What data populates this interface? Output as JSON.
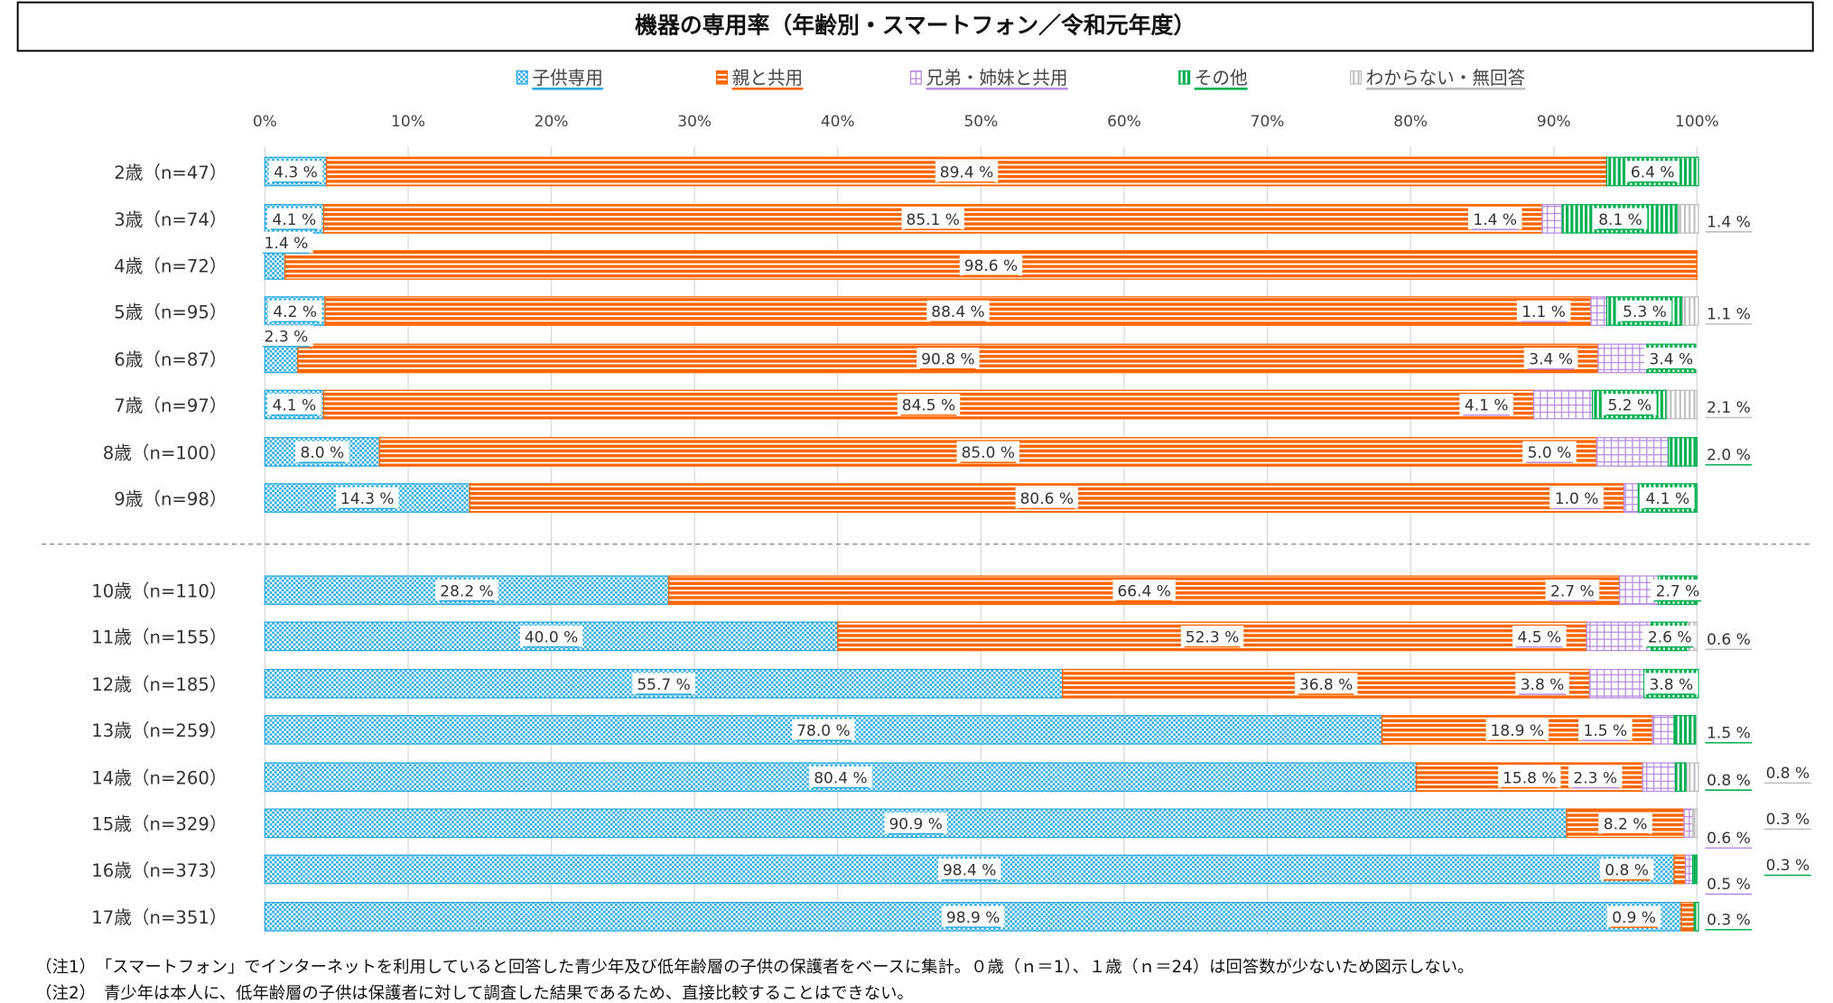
{
  "chart_data": {
    "type": "bar",
    "orientation": "horizontal-stacked-100",
    "title": "機器の専用率（年齢別・スマートフォン／令和元年度）",
    "xlim": [
      0,
      100
    ],
    "x_ticks": [
      "0%",
      "10%",
      "20%",
      "30%",
      "40%",
      "50%",
      "60%",
      "70%",
      "80%",
      "90%",
      "100%"
    ],
    "grid": true,
    "legend_placement": "top",
    "categories": [
      "2歳（n=47）",
      "3歳（n=74）",
      "4歳（n=72）",
      "5歳（n=95）",
      "6歳（n=87）",
      "7歳（n=97）",
      "8歳（n=100）",
      "9歳（n=98）",
      "10歳（n=110）",
      "11歳（n=155）",
      "12歳（n=185）",
      "13歳（n=259）",
      "14歳（n=260）",
      "15歳（n=329）",
      "16歳（n=373）",
      "17歳（n=351）"
    ],
    "group_divider_after": "9歳（n=98）",
    "series": [
      {
        "name": "子供専用",
        "color": "#29ABE2",
        "pattern": "checker",
        "values": [
          4.3,
          4.1,
          1.4,
          4.2,
          2.3,
          4.1,
          8.0,
          14.3,
          28.2,
          40.0,
          55.7,
          78.0,
          80.4,
          90.9,
          98.4,
          98.9
        ]
      },
      {
        "name": "親と共用",
        "color": "#FF6600",
        "pattern": "horizontal-stripes",
        "values": [
          89.4,
          85.1,
          98.6,
          88.4,
          90.8,
          84.5,
          85.0,
          80.6,
          66.4,
          52.3,
          36.8,
          18.9,
          15.8,
          8.2,
          0.8,
          0.9
        ]
      },
      {
        "name": "兄弟・姉妹と共用",
        "color": "#B98EE0",
        "pattern": "grid",
        "values": [
          0,
          1.4,
          0,
          1.1,
          3.4,
          4.1,
          5.0,
          1.0,
          2.7,
          4.5,
          3.8,
          1.5,
          2.3,
          0.6,
          0.5,
          0
        ]
      },
      {
        "name": "その他",
        "color": "#00B050",
        "pattern": "vertical-stripes",
        "values": [
          6.4,
          8.1,
          0,
          5.3,
          3.4,
          5.2,
          2.0,
          4.1,
          2.7,
          2.6,
          3.8,
          1.5,
          0.8,
          0,
          0.3,
          0.3
        ]
      },
      {
        "name": "わからない・無回答",
        "color": "#BFBFBF",
        "pattern": "vertical-stripes",
        "values": [
          0,
          1.4,
          0,
          1.1,
          0,
          2.1,
          0,
          0,
          0,
          0.6,
          0,
          0,
          0.8,
          0.3,
          0,
          0
        ]
      }
    ]
  },
  "notes": [
    "（注1）　「スマートフォン」でインターネットを利用していると回答した青少年及び低年齢層の子供の保護者をベースに集計。０歳（ｎ＝1）、１歳（ｎ＝24）は回答数が少ないため図示しない。",
    "（注2）　青少年は本人に、低年齢層の子供は保護者に対して調査した結果であるため、直接比較することはできない。"
  ]
}
